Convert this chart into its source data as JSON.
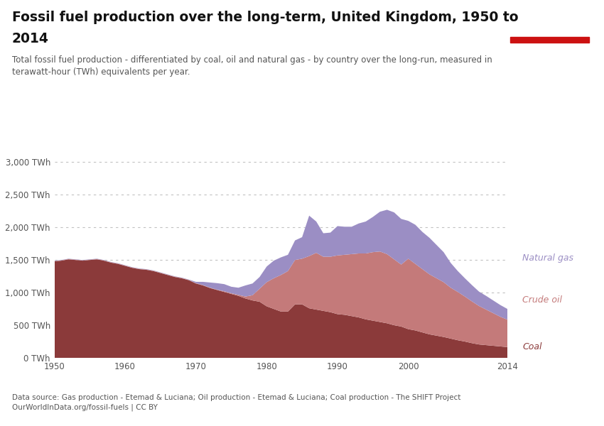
{
  "title_line1": "Fossil fuel production over the long-term, United Kingdom, 1950 to",
  "title_line2": "2014",
  "subtitle": "Total fossil fuel production - differentiated by coal, oil and natural gas - by country over the long-run, measured in\nterawatt-hour (TWh) equivalents per year.",
  "datasource": "Data source: Gas production - Etemad & Luciana; Oil production - Etemad & Luciana; Coal production - The SHIFT Project\nOurWorldInData.org/fossil-fuels | CC BY",
  "years": [
    1950,
    1951,
    1952,
    1953,
    1954,
    1955,
    1956,
    1957,
    1958,
    1959,
    1960,
    1961,
    1962,
    1963,
    1964,
    1965,
    1966,
    1967,
    1968,
    1969,
    1970,
    1971,
    1972,
    1973,
    1974,
    1975,
    1976,
    1977,
    1978,
    1979,
    1980,
    1981,
    1982,
    1983,
    1984,
    1985,
    1986,
    1987,
    1988,
    1989,
    1990,
    1991,
    1992,
    1993,
    1994,
    1995,
    1996,
    1997,
    1998,
    1999,
    2000,
    2001,
    2002,
    2003,
    2004,
    2005,
    2006,
    2007,
    2008,
    2009,
    2010,
    2011,
    2012,
    2013,
    2014
  ],
  "coal": [
    1480,
    1490,
    1510,
    1500,
    1490,
    1500,
    1510,
    1490,
    1460,
    1440,
    1410,
    1380,
    1360,
    1350,
    1330,
    1300,
    1270,
    1240,
    1220,
    1190,
    1140,
    1110,
    1070,
    1040,
    1010,
    980,
    950,
    910,
    880,
    860,
    790,
    750,
    710,
    710,
    820,
    820,
    760,
    740,
    720,
    700,
    670,
    660,
    640,
    620,
    590,
    570,
    550,
    530,
    500,
    480,
    440,
    420,
    390,
    360,
    340,
    320,
    295,
    270,
    250,
    225,
    205,
    195,
    185,
    175,
    165
  ],
  "crude_oil": [
    5,
    5,
    5,
    5,
    5,
    5,
    5,
    5,
    5,
    5,
    5,
    5,
    5,
    5,
    5,
    5,
    5,
    5,
    5,
    5,
    5,
    5,
    5,
    5,
    10,
    10,
    15,
    30,
    80,
    200,
    370,
    470,
    560,
    620,
    680,
    700,
    800,
    870,
    830,
    850,
    900,
    920,
    950,
    980,
    1010,
    1050,
    1080,
    1060,
    1010,
    950,
    1080,
    1020,
    970,
    920,
    880,
    840,
    780,
    740,
    690,
    640,
    590,
    545,
    500,
    455,
    420
  ],
  "natural_gas": [
    5,
    5,
    5,
    5,
    5,
    5,
    5,
    5,
    5,
    5,
    5,
    5,
    5,
    5,
    5,
    5,
    5,
    5,
    5,
    5,
    20,
    50,
    80,
    100,
    110,
    100,
    110,
    170,
    180,
    180,
    240,
    270,
    270,
    250,
    300,
    330,
    620,
    480,
    360,
    370,
    450,
    430,
    420,
    460,
    490,
    540,
    610,
    680,
    720,
    700,
    580,
    600,
    570,
    560,
    510,
    460,
    380,
    320,
    280,
    250,
    220,
    210,
    195,
    180,
    165
  ],
  "coal_color": "#8B3A3A",
  "crude_oil_color": "#C47A7A",
  "natural_gas_color": "#9B8EC4",
  "grid_color": "#bbbbbb",
  "yticks": [
    0,
    500,
    1000,
    1500,
    2000,
    2500,
    3000
  ],
  "ylim": [
    0,
    3200
  ],
  "xticks": [
    1950,
    1960,
    1970,
    1980,
    1990,
    2000,
    2014
  ],
  "logo_bg": "#1a3460",
  "logo_red": "#cc1111"
}
